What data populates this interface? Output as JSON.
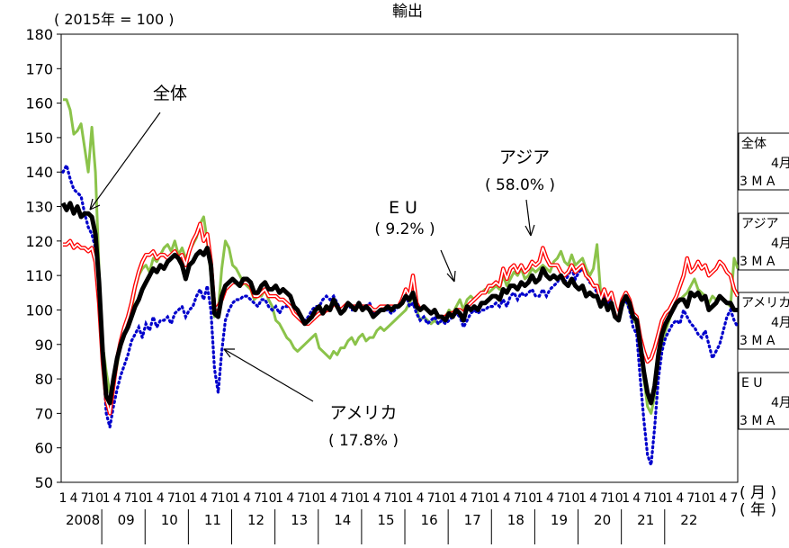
{
  "chart_data": {
    "type": "line",
    "title": "輸出",
    "unit_label": "( 2015年 = 100 )",
    "ylim": [
      50,
      180
    ],
    "y_ticks": [
      50,
      60,
      70,
      80,
      90,
      100,
      110,
      120,
      130,
      140,
      150,
      160,
      170,
      180
    ],
    "x_start": "2008-01",
    "x_end": "2022-04",
    "month_tick_labels": [
      "1",
      "4",
      "7",
      "10"
    ],
    "year_labels": [
      "2008",
      "09",
      "10",
      "11",
      "12",
      "13",
      "14",
      "15",
      "16",
      "17",
      "18",
      "19",
      "20",
      "21",
      "22"
    ],
    "month_axis_label": "( 月 )",
    "year_axis_label": "( 年 )",
    "annotations": {
      "total": "全体",
      "asia": [
        "アジア",
        "( 58.0% )"
      ],
      "eu": [
        "E U",
        "( 9.2% )"
      ],
      "america": [
        "アメリカ",
        "( 17.8% )"
      ]
    },
    "side_boxes": [
      {
        "name": "全体",
        "line1": "4月",
        "line2": "3 M A"
      },
      {
        "name": "アジア",
        "line1": "4月",
        "line2": "3 M A"
      },
      {
        "name": "アメリカ",
        "line1": "4月",
        "line2": "3 M A"
      },
      {
        "name": "E U",
        "line1": "4月",
        "line2": "3 M A"
      }
    ],
    "series": [
      {
        "key": "total",
        "name": "全体",
        "color": "#000000",
        "style": "thick",
        "values": [
          131,
          129,
          131,
          128,
          130,
          127,
          128,
          128,
          127,
          122,
          108,
          88,
          75,
          73,
          80,
          86,
          90,
          93,
          95,
          98,
          101,
          103,
          106,
          108,
          110,
          112,
          111,
          113,
          112,
          114,
          115,
          116,
          115,
          113,
          109,
          113,
          114,
          116,
          117,
          116,
          118,
          113,
          99,
          98,
          104,
          107,
          108,
          109,
          108,
          107,
          109,
          109,
          108,
          105,
          105,
          107,
          108,
          106,
          106,
          107,
          105,
          106,
          105,
          104,
          101,
          100,
          98,
          96,
          97,
          98,
          100,
          101,
          99,
          101,
          100,
          103,
          101,
          99,
          100,
          102,
          101,
          100,
          102,
          100,
          101,
          100,
          98,
          99,
          100,
          100,
          101,
          100,
          101,
          101,
          102,
          104,
          103,
          105,
          101,
          100,
          101,
          100,
          99,
          100,
          98,
          98,
          97,
          99,
          98,
          100,
          99,
          97,
          101,
          100,
          101,
          100,
          102,
          102,
          103,
          104,
          104,
          103,
          106,
          105,
          107,
          107,
          106,
          108,
          107,
          108,
          110,
          108,
          109,
          112,
          110,
          109,
          110,
          109,
          110,
          108,
          107,
          109,
          107,
          106,
          107,
          104,
          105,
          104,
          104,
          101,
          103,
          100,
          102,
          98,
          97,
          102,
          104,
          102,
          98,
          97,
          90,
          82,
          76,
          73,
          78,
          87,
          93,
          96,
          98,
          100,
          102,
          103,
          103,
          101,
          105,
          104,
          105,
          103,
          104,
          100,
          101,
          102,
          104,
          103,
          102,
          102,
          100,
          100
        ]
      },
      {
        "key": "asia",
        "name": "アジア",
        "color": "#ff0000",
        "style": "double",
        "values": [
          119,
          119,
          120,
          118,
          119,
          118,
          118,
          117,
          118,
          114,
          102,
          85,
          74,
          70,
          78,
          86,
          91,
          95,
          98,
          102,
          107,
          111,
          114,
          116,
          116,
          117,
          115,
          116,
          116,
          115,
          116,
          117,
          115,
          116,
          113,
          117,
          120,
          122,
          125,
          120,
          122,
          114,
          100,
          101,
          103,
          106,
          107,
          108,
          108,
          107,
          108,
          108,
          107,
          104,
          104,
          105,
          106,
          104,
          104,
          104,
          103,
          103,
          102,
          101,
          99,
          98,
          97,
          96,
          96,
          97,
          98,
          99,
          99,
          100,
          100,
          102,
          101,
          100,
          101,
          102,
          101,
          101,
          101,
          101,
          101,
          101,
          100,
          100,
          101,
          101,
          101,
          101,
          101,
          101,
          103,
          106,
          104,
          110,
          102,
          100,
          101,
          100,
          99,
          100,
          98,
          98,
          98,
          99,
          99,
          100,
          100,
          99,
          101,
          102,
          103,
          104,
          105,
          105,
          107,
          107,
          108,
          107,
          112,
          109,
          112,
          113,
          111,
          113,
          111,
          112,
          114,
          113,
          114,
          118,
          115,
          113,
          113,
          113,
          111,
          110,
          111,
          113,
          111,
          112,
          113,
          110,
          109,
          107,
          107,
          103,
          106,
          103,
          105,
          101,
          98,
          103,
          105,
          103,
          99,
          98,
          92,
          88,
          85,
          86,
          89,
          93,
          97,
          99,
          100,
          102,
          104,
          107,
          110,
          115,
          111,
          112,
          114,
          112,
          113,
          110,
          111,
          112,
          114,
          113,
          111,
          110,
          106,
          104
        ]
      },
      {
        "key": "america",
        "name": "アメリカ",
        "color": "#0000cc",
        "style": "dotted",
        "values": [
          140,
          142,
          138,
          135,
          134,
          133,
          128,
          124,
          122,
          118,
          108,
          87,
          70,
          66,
          72,
          77,
          81,
          84,
          87,
          91,
          93,
          95,
          92,
          96,
          94,
          98,
          95,
          97,
          97,
          98,
          96,
          99,
          100,
          101,
          98,
          100,
          101,
          104,
          106,
          103,
          107,
          100,
          83,
          76,
          88,
          97,
          100,
          102,
          103,
          103,
          104,
          104,
          103,
          102,
          101,
          103,
          103,
          101,
          100,
          101,
          99,
          101,
          101,
          101,
          99,
          98,
          98,
          97,
          98,
          100,
          101,
          101,
          103,
          104,
          103,
          104,
          102,
          100,
          101,
          102,
          100,
          100,
          102,
          101,
          101,
          102,
          99,
          99,
          100,
          100,
          100,
          99,
          100,
          101,
          103,
          105,
          101,
          102,
          99,
          97,
          98,
          96,
          97,
          98,
          96,
          97,
          96,
          97,
          98,
          99,
          98,
          95,
          97,
          99,
          100,
          99,
          100,
          100,
          101,
          101,
          102,
          101,
          103,
          101,
          104,
          105,
          103,
          105,
          104,
          105,
          106,
          104,
          104,
          106,
          104,
          106,
          107,
          108,
          110,
          108,
          110,
          112,
          109,
          111,
          112,
          110,
          108,
          107,
          105,
          102,
          104,
          102,
          103,
          101,
          98,
          101,
          103,
          100,
          95,
          93,
          80,
          68,
          58,
          55,
          66,
          80,
          88,
          92,
          94,
          96,
          97,
          96,
          100,
          98,
          96,
          95,
          93,
          92,
          94,
          90,
          86,
          88,
          90,
          94,
          98,
          100,
          97,
          95
        ]
      },
      {
        "key": "eu",
        "name": "E U",
        "color": "#8bc34a",
        "style": "solid",
        "values": [
          161,
          161,
          158,
          151,
          152,
          154,
          147,
          140,
          153,
          140,
          112,
          90,
          82,
          76,
          78,
          84,
          90,
          93,
          96,
          100,
          106,
          110,
          112,
          113,
          111,
          115,
          114,
          116,
          118,
          119,
          117,
          120,
          116,
          118,
          115,
          117,
          119,
          121,
          125,
          127,
          120,
          110,
          98,
          100,
          112,
          120,
          118,
          113,
          112,
          110,
          108,
          107,
          106,
          103,
          104,
          104,
          106,
          103,
          101,
          97,
          96,
          94,
          92,
          91,
          89,
          88,
          89,
          90,
          91,
          92,
          93,
          89,
          88,
          87,
          86,
          88,
          87,
          89,
          89,
          91,
          92,
          90,
          92,
          93,
          91,
          92,
          92,
          94,
          95,
          94,
          95,
          96,
          97,
          98,
          99,
          100,
          102,
          104,
          100,
          97,
          98,
          97,
          96,
          97,
          96,
          97,
          98,
          100,
          99,
          101,
          103,
          100,
          103,
          104,
          103,
          104,
          105,
          106,
          105,
          106,
          107,
          106,
          110,
          107,
          109,
          111,
          110,
          112,
          109,
          110,
          112,
          111,
          112,
          113,
          112,
          111,
          114,
          115,
          117,
          114,
          113,
          116,
          113,
          114,
          115,
          112,
          110,
          112,
          119,
          105,
          104,
          102,
          104,
          101,
          99,
          101,
          103,
          100,
          97,
          96,
          88,
          80,
          72,
          70,
          75,
          85,
          90,
          94,
          97,
          100,
          102,
          103,
          104,
          105,
          107,
          109,
          106,
          105,
          104,
          102,
          104,
          103,
          104,
          103,
          102,
          101,
          115,
          112
        ]
      }
    ]
  }
}
